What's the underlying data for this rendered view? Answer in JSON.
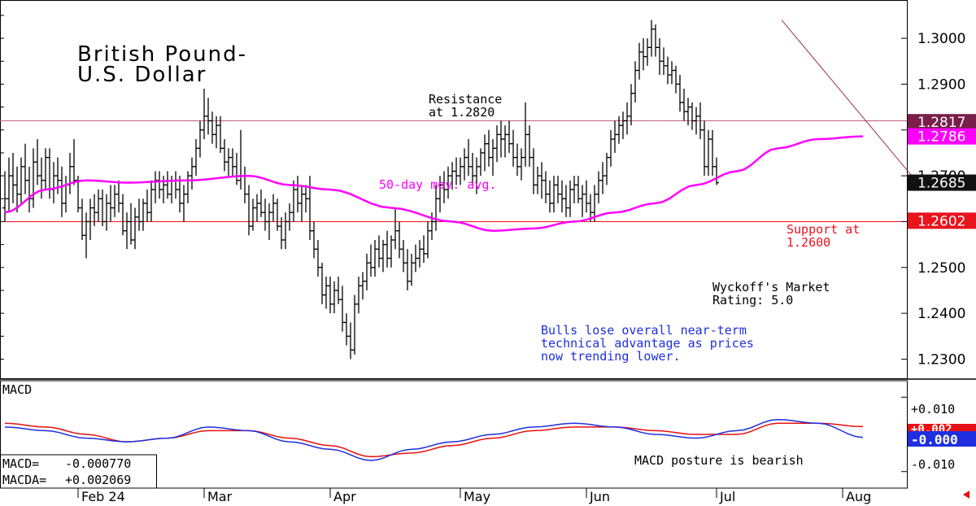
{
  "title_line1": "British Pound-",
  "title_line2": "U.S. Dollar",
  "annotations": {
    "resistance_line1": "Resistance",
    "resistance_line2": "at 1.2820",
    "ma_label": "50-day mov. avg.",
    "support_line1": "Support at",
    "support_line2": "1.2600",
    "rating_line1": "Wyckoff's Market",
    "rating_line2": "Rating: 5.0",
    "comment_line1": "Bulls lose overall near-term",
    "comment_line2": "technical advantage as prices",
    "comment_line3": "now trending lower.",
    "macd_comment": "MACD posture is bearish"
  },
  "price_tags": [
    {
      "label": "1.2817",
      "value": 1.2817,
      "bg": "#7a1f4a",
      "fg": "#ffffff"
    },
    {
      "label": "1.2786",
      "value": 1.2786,
      "bg": "#ff00ff",
      "fg": "#ffffff"
    },
    {
      "label": "1.2685",
      "value": 1.2685,
      "bg": "#111111",
      "fg": "#ffffff"
    },
    {
      "label": "1.2602",
      "value": 1.2602,
      "bg": "#e8141e",
      "fg": "#ffffff"
    }
  ],
  "macd_panel": {
    "label": "MACD",
    "macd_label": "MACD=",
    "macd_value": "-0.000770",
    "macda_label": "MACDA=",
    "macda_value": "+0.002069",
    "axis_ticks": [
      "+0.010",
      "-0.010"
    ],
    "tag_red": "+0.002",
    "tag_blue": "-0.000"
  },
  "colors": {
    "price_bar": "#000000",
    "moving_average": "#ff00ff",
    "resistance": "#c06080",
    "support": "#e8141e",
    "trendline": "#a03050",
    "macd": "#1f2fe0",
    "macda": "#e81010",
    "comment": "#1f2fe0"
  },
  "chart_data": {
    "type": "ohlc",
    "y_ticks": [
      1.3,
      1.29,
      1.28,
      1.27,
      1.26,
      1.25,
      1.24,
      1.23
    ],
    "y_tick_labels": [
      "1.3000",
      "1.2900",
      "1.2800",
      "1.2700",
      "1.2600",
      "1.2500",
      "1.2400",
      "1.2300"
    ],
    "ylim": [
      1.226,
      1.308
    ],
    "x_months": [
      "Feb 24",
      "Mar",
      "Apr",
      "May",
      "Jun",
      "Jul",
      "Aug"
    ],
    "x_month_bar_index": [
      18,
      49,
      80,
      112,
      143,
      175,
      206
    ],
    "resistance": 1.282,
    "support": 1.26,
    "trendline": [
      {
        "bar": 191,
        "value": 1.304
      },
      {
        "bar": 223,
        "value": 1.27
      }
    ],
    "bars": [
      [
        1.263,
        1.271,
        1.26,
        1.265
      ],
      [
        1.265,
        1.274,
        1.262,
        1.27
      ],
      [
        1.27,
        1.275,
        1.264,
        1.268
      ],
      [
        1.268,
        1.272,
        1.262,
        1.266
      ],
      [
        1.266,
        1.274,
        1.264,
        1.272
      ],
      [
        1.272,
        1.277,
        1.266,
        1.269
      ],
      [
        1.269,
        1.272,
        1.262,
        1.265
      ],
      [
        1.265,
        1.276,
        1.263,
        1.273
      ],
      [
        1.273,
        1.278,
        1.268,
        1.27
      ],
      [
        1.27,
        1.274,
        1.265,
        1.269
      ],
      [
        1.269,
        1.276,
        1.267,
        1.274
      ],
      [
        1.274,
        1.276,
        1.265,
        1.267
      ],
      [
        1.267,
        1.273,
        1.264,
        1.27
      ],
      [
        1.27,
        1.274,
        1.266,
        1.269
      ],
      [
        1.269,
        1.272,
        1.261,
        1.264
      ],
      [
        1.264,
        1.27,
        1.262,
        1.268
      ],
      [
        1.268,
        1.275,
        1.266,
        1.272
      ],
      [
        1.272,
        1.278,
        1.268,
        1.269
      ],
      [
        1.269,
        1.27,
        1.262,
        1.263
      ],
      [
        1.263,
        1.265,
        1.256,
        1.257
      ],
      [
        1.257,
        1.262,
        1.252,
        1.26
      ],
      [
        1.26,
        1.265,
        1.256,
        1.263
      ],
      [
        1.263,
        1.266,
        1.259,
        1.262
      ],
      [
        1.262,
        1.267,
        1.26,
        1.265
      ],
      [
        1.265,
        1.267,
        1.259,
        1.26
      ],
      [
        1.26,
        1.266,
        1.258,
        1.264
      ],
      [
        1.264,
        1.268,
        1.26,
        1.263
      ],
      [
        1.263,
        1.268,
        1.261,
        1.266
      ],
      [
        1.266,
        1.269,
        1.262,
        1.264
      ],
      [
        1.264,
        1.266,
        1.257,
        1.258
      ],
      [
        1.258,
        1.262,
        1.254,
        1.26
      ],
      [
        1.26,
        1.264,
        1.255,
        1.256
      ],
      [
        1.256,
        1.263,
        1.254,
        1.261
      ],
      [
        1.261,
        1.265,
        1.258,
        1.26
      ],
      [
        1.26,
        1.265,
        1.258,
        1.264
      ],
      [
        1.264,
        1.267,
        1.26,
        1.262
      ],
      [
        1.262,
        1.269,
        1.26,
        1.267
      ],
      [
        1.267,
        1.271,
        1.264,
        1.269
      ],
      [
        1.269,
        1.271,
        1.265,
        1.267
      ],
      [
        1.267,
        1.27,
        1.264,
        1.268
      ],
      [
        1.268,
        1.271,
        1.265,
        1.266
      ],
      [
        1.266,
        1.27,
        1.264,
        1.269
      ],
      [
        1.269,
        1.271,
        1.265,
        1.267
      ],
      [
        1.267,
        1.27,
        1.262,
        1.264
      ],
      [
        1.264,
        1.268,
        1.26,
        1.266
      ],
      [
        1.266,
        1.271,
        1.264,
        1.27
      ],
      [
        1.27,
        1.274,
        1.267,
        1.272
      ],
      [
        1.272,
        1.278,
        1.27,
        1.276
      ],
      [
        1.276,
        1.282,
        1.274,
        1.28
      ],
      [
        1.28,
        1.289,
        1.278,
        1.283
      ],
      [
        1.283,
        1.287,
        1.279,
        1.282
      ],
      [
        1.282,
        1.284,
        1.277,
        1.279
      ],
      [
        1.279,
        1.283,
        1.276,
        1.281
      ],
      [
        1.281,
        1.283,
        1.275,
        1.276
      ],
      [
        1.276,
        1.278,
        1.271,
        1.273
      ],
      [
        1.273,
        1.276,
        1.27,
        1.274
      ],
      [
        1.274,
        1.276,
        1.27,
        1.272
      ],
      [
        1.272,
        1.275,
        1.268,
        1.269
      ],
      [
        1.269,
        1.28,
        1.267,
        1.27
      ],
      [
        1.27,
        1.272,
        1.264,
        1.266
      ],
      [
        1.266,
        1.268,
        1.257,
        1.259
      ],
      [
        1.259,
        1.265,
        1.258,
        1.263
      ],
      [
        1.263,
        1.266,
        1.26,
        1.264
      ],
      [
        1.264,
        1.267,
        1.261,
        1.262
      ],
      [
        1.262,
        1.265,
        1.258,
        1.26
      ],
      [
        1.26,
        1.264,
        1.256,
        1.262
      ],
      [
        1.262,
        1.266,
        1.26,
        1.264
      ],
      [
        1.264,
        1.265,
        1.258,
        1.259
      ],
      [
        1.259,
        1.261,
        1.254,
        1.256
      ],
      [
        1.256,
        1.262,
        1.254,
        1.26
      ],
      [
        1.26,
        1.264,
        1.258,
        1.262
      ],
      [
        1.262,
        1.269,
        1.26,
        1.267
      ],
      [
        1.267,
        1.27,
        1.262,
        1.264
      ],
      [
        1.264,
        1.268,
        1.26,
        1.266
      ],
      [
        1.266,
        1.268,
        1.262,
        1.265
      ],
      [
        1.265,
        1.27,
        1.256,
        1.258
      ],
      [
        1.258,
        1.26,
        1.252,
        1.254
      ],
      [
        1.254,
        1.256,
        1.248,
        1.25
      ],
      [
        1.25,
        1.251,
        1.242,
        1.244
      ],
      [
        1.244,
        1.248,
        1.241,
        1.246
      ],
      [
        1.246,
        1.248,
        1.24,
        1.242
      ],
      [
        1.242,
        1.247,
        1.24,
        1.245
      ],
      [
        1.245,
        1.248,
        1.242,
        1.243
      ],
      [
        1.243,
        1.246,
        1.236,
        1.238
      ],
      [
        1.238,
        1.24,
        1.233,
        1.235
      ],
      [
        1.235,
        1.238,
        1.23,
        1.232
      ],
      [
        1.232,
        1.244,
        1.231,
        1.242
      ],
      [
        1.242,
        1.248,
        1.24,
        1.246
      ],
      [
        1.246,
        1.249,
        1.243,
        1.247
      ],
      [
        1.247,
        1.253,
        1.245,
        1.251
      ],
      [
        1.251,
        1.255,
        1.248,
        1.25
      ],
      [
        1.25,
        1.256,
        1.248,
        1.254
      ],
      [
        1.254,
        1.257,
        1.25,
        1.252
      ],
      [
        1.252,
        1.256,
        1.249,
        1.255
      ],
      [
        1.255,
        1.258,
        1.25,
        1.252
      ],
      [
        1.252,
        1.257,
        1.25,
        1.256
      ],
      [
        1.256,
        1.263,
        1.254,
        1.258
      ],
      [
        1.258,
        1.26,
        1.252,
        1.254
      ],
      [
        1.254,
        1.256,
        1.249,
        1.251
      ],
      [
        1.251,
        1.254,
        1.245,
        1.247
      ],
      [
        1.247,
        1.253,
        1.246,
        1.251
      ],
      [
        1.251,
        1.255,
        1.249,
        1.252
      ],
      [
        1.252,
        1.256,
        1.25,
        1.254
      ],
      [
        1.254,
        1.257,
        1.251,
        1.253
      ],
      [
        1.253,
        1.26,
        1.252,
        1.258
      ],
      [
        1.258,
        1.262,
        1.256,
        1.26
      ],
      [
        1.26,
        1.268,
        1.258,
        1.265
      ],
      [
        1.265,
        1.27,
        1.262,
        1.268
      ],
      [
        1.268,
        1.271,
        1.264,
        1.267
      ],
      [
        1.267,
        1.272,
        1.265,
        1.27
      ],
      [
        1.27,
        1.273,
        1.267,
        1.271
      ],
      [
        1.271,
        1.274,
        1.268,
        1.27
      ],
      [
        1.27,
        1.274,
        1.268,
        1.272
      ],
      [
        1.272,
        1.276,
        1.269,
        1.274
      ],
      [
        1.274,
        1.278,
        1.27,
        1.272
      ],
      [
        1.272,
        1.275,
        1.268,
        1.27
      ],
      [
        1.27,
        1.274,
        1.266,
        1.272
      ],
      [
        1.272,
        1.276,
        1.27,
        1.275
      ],
      [
        1.275,
        1.279,
        1.271,
        1.277
      ],
      [
        1.277,
        1.28,
        1.272,
        1.274
      ],
      [
        1.274,
        1.278,
        1.27,
        1.276
      ],
      [
        1.276,
        1.281,
        1.273,
        1.279
      ],
      [
        1.279,
        1.282,
        1.274,
        1.278
      ],
      [
        1.278,
        1.281,
        1.274,
        1.279
      ],
      [
        1.279,
        1.282,
        1.275,
        1.277
      ],
      [
        1.277,
        1.28,
        1.272,
        1.274
      ],
      [
        1.274,
        1.277,
        1.27,
        1.272
      ],
      [
        1.272,
        1.276,
        1.269,
        1.274
      ],
      [
        1.274,
        1.286,
        1.272,
        1.279
      ],
      [
        1.279,
        1.281,
        1.272,
        1.274
      ],
      [
        1.274,
        1.276,
        1.266,
        1.268
      ],
      [
        1.268,
        1.272,
        1.266,
        1.27
      ],
      [
        1.27,
        1.273,
        1.265,
        1.269
      ],
      [
        1.269,
        1.271,
        1.264,
        1.266
      ],
      [
        1.266,
        1.269,
        1.262,
        1.264
      ],
      [
        1.264,
        1.27,
        1.262,
        1.268
      ],
      [
        1.268,
        1.27,
        1.264,
        1.266
      ],
      [
        1.266,
        1.269,
        1.262,
        1.265
      ],
      [
        1.265,
        1.268,
        1.261,
        1.263
      ],
      [
        1.263,
        1.269,
        1.261,
        1.267
      ],
      [
        1.267,
        1.27,
        1.264,
        1.268
      ],
      [
        1.268,
        1.27,
        1.264,
        1.265
      ],
      [
        1.265,
        1.268,
        1.261,
        1.266
      ],
      [
        1.266,
        1.269,
        1.262,
        1.264
      ],
      [
        1.264,
        1.266,
        1.26,
        1.262
      ],
      [
        1.262,
        1.268,
        1.26,
        1.266
      ],
      [
        1.266,
        1.271,
        1.264,
        1.269
      ],
      [
        1.269,
        1.273,
        1.266,
        1.27
      ],
      [
        1.27,
        1.275,
        1.268,
        1.274
      ],
      [
        1.274,
        1.28,
        1.272,
        1.278
      ],
      [
        1.278,
        1.282,
        1.275,
        1.279
      ],
      [
        1.279,
        1.283,
        1.277,
        1.281
      ],
      [
        1.281,
        1.284,
        1.278,
        1.282
      ],
      [
        1.282,
        1.286,
        1.279,
        1.283
      ],
      [
        1.283,
        1.29,
        1.281,
        1.288
      ],
      [
        1.288,
        1.295,
        1.286,
        1.293
      ],
      [
        1.293,
        1.299,
        1.291,
        1.297
      ],
      [
        1.297,
        1.3,
        1.293,
        1.296
      ],
      [
        1.296,
        1.3,
        1.294,
        1.298
      ],
      [
        1.298,
        1.304,
        1.296,
        1.302
      ],
      [
        1.302,
        1.303,
        1.296,
        1.298
      ],
      [
        1.298,
        1.3,
        1.292,
        1.295
      ],
      [
        1.295,
        1.298,
        1.292,
        1.294
      ],
      [
        1.294,
        1.296,
        1.29,
        1.292
      ],
      [
        1.292,
        1.295,
        1.29,
        1.293
      ],
      [
        1.293,
        1.294,
        1.288,
        1.29
      ],
      [
        1.29,
        1.292,
        1.284,
        1.286
      ],
      [
        1.286,
        1.289,
        1.282,
        1.284
      ],
      [
        1.284,
        1.287,
        1.281,
        1.285
      ],
      [
        1.285,
        1.286,
        1.28,
        1.282
      ],
      [
        1.282,
        1.285,
        1.279,
        1.283
      ],
      [
        1.283,
        1.286,
        1.278,
        1.28
      ],
      [
        1.28,
        1.282,
        1.27,
        1.272
      ],
      [
        1.272,
        1.28,
        1.27,
        1.278
      ],
      [
        1.278,
        1.28,
        1.27,
        1.272
      ],
      [
        1.272,
        1.274,
        1.268,
        1.2685
      ]
    ],
    "moving_average": [
      [
        0,
        1.262
      ],
      [
        10,
        1.267
      ],
      [
        20,
        1.269
      ],
      [
        30,
        1.2685
      ],
      [
        45,
        1.269
      ],
      [
        60,
        1.27
      ],
      [
        70,
        1.268
      ],
      [
        80,
        1.267
      ],
      [
        95,
        1.263
      ],
      [
        110,
        1.26
      ],
      [
        120,
        1.258
      ],
      [
        130,
        1.2585
      ],
      [
        140,
        1.26
      ],
      [
        150,
        1.262
      ],
      [
        160,
        1.264
      ],
      [
        170,
        1.268
      ],
      [
        180,
        1.271
      ],
      [
        190,
        1.276
      ],
      [
        200,
        1.278
      ],
      [
        211,
        1.2786
      ]
    ],
    "macd": {
      "ylim": [
        -0.014,
        0.014
      ],
      "ticks": [
        0.01,
        -0.01
      ],
      "macd_series": [
        [
          0,
          0.002
        ],
        [
          10,
          0.001
        ],
        [
          20,
          -0.001
        ],
        [
          30,
          -0.002
        ],
        [
          40,
          -0.001
        ],
        [
          50,
          0.002
        ],
        [
          60,
          0.001
        ],
        [
          70,
          -0.002
        ],
        [
          80,
          -0.004
        ],
        [
          90,
          -0.007
        ],
        [
          100,
          -0.004
        ],
        [
          110,
          -0.002
        ],
        [
          120,
          0.0
        ],
        [
          130,
          0.002
        ],
        [
          140,
          0.003
        ],
        [
          150,
          0.002
        ],
        [
          160,
          0.0
        ],
        [
          170,
          -0.001
        ],
        [
          180,
          0.001
        ],
        [
          190,
          0.004
        ],
        [
          200,
          0.003
        ],
        [
          211,
          -0.0008
        ]
      ],
      "macda_series": [
        [
          0,
          0.003
        ],
        [
          10,
          0.002
        ],
        [
          20,
          0.0
        ],
        [
          30,
          -0.002
        ],
        [
          40,
          -0.001
        ],
        [
          50,
          0.001
        ],
        [
          60,
          0.001
        ],
        [
          70,
          -0.001
        ],
        [
          80,
          -0.003
        ],
        [
          90,
          -0.006
        ],
        [
          100,
          -0.005
        ],
        [
          110,
          -0.003
        ],
        [
          120,
          -0.001
        ],
        [
          130,
          0.001
        ],
        [
          140,
          0.002
        ],
        [
          150,
          0.002
        ],
        [
          160,
          0.001
        ],
        [
          170,
          0.0
        ],
        [
          180,
          0.0
        ],
        [
          190,
          0.003
        ],
        [
          200,
          0.003
        ],
        [
          211,
          0.0021
        ]
      ]
    }
  }
}
